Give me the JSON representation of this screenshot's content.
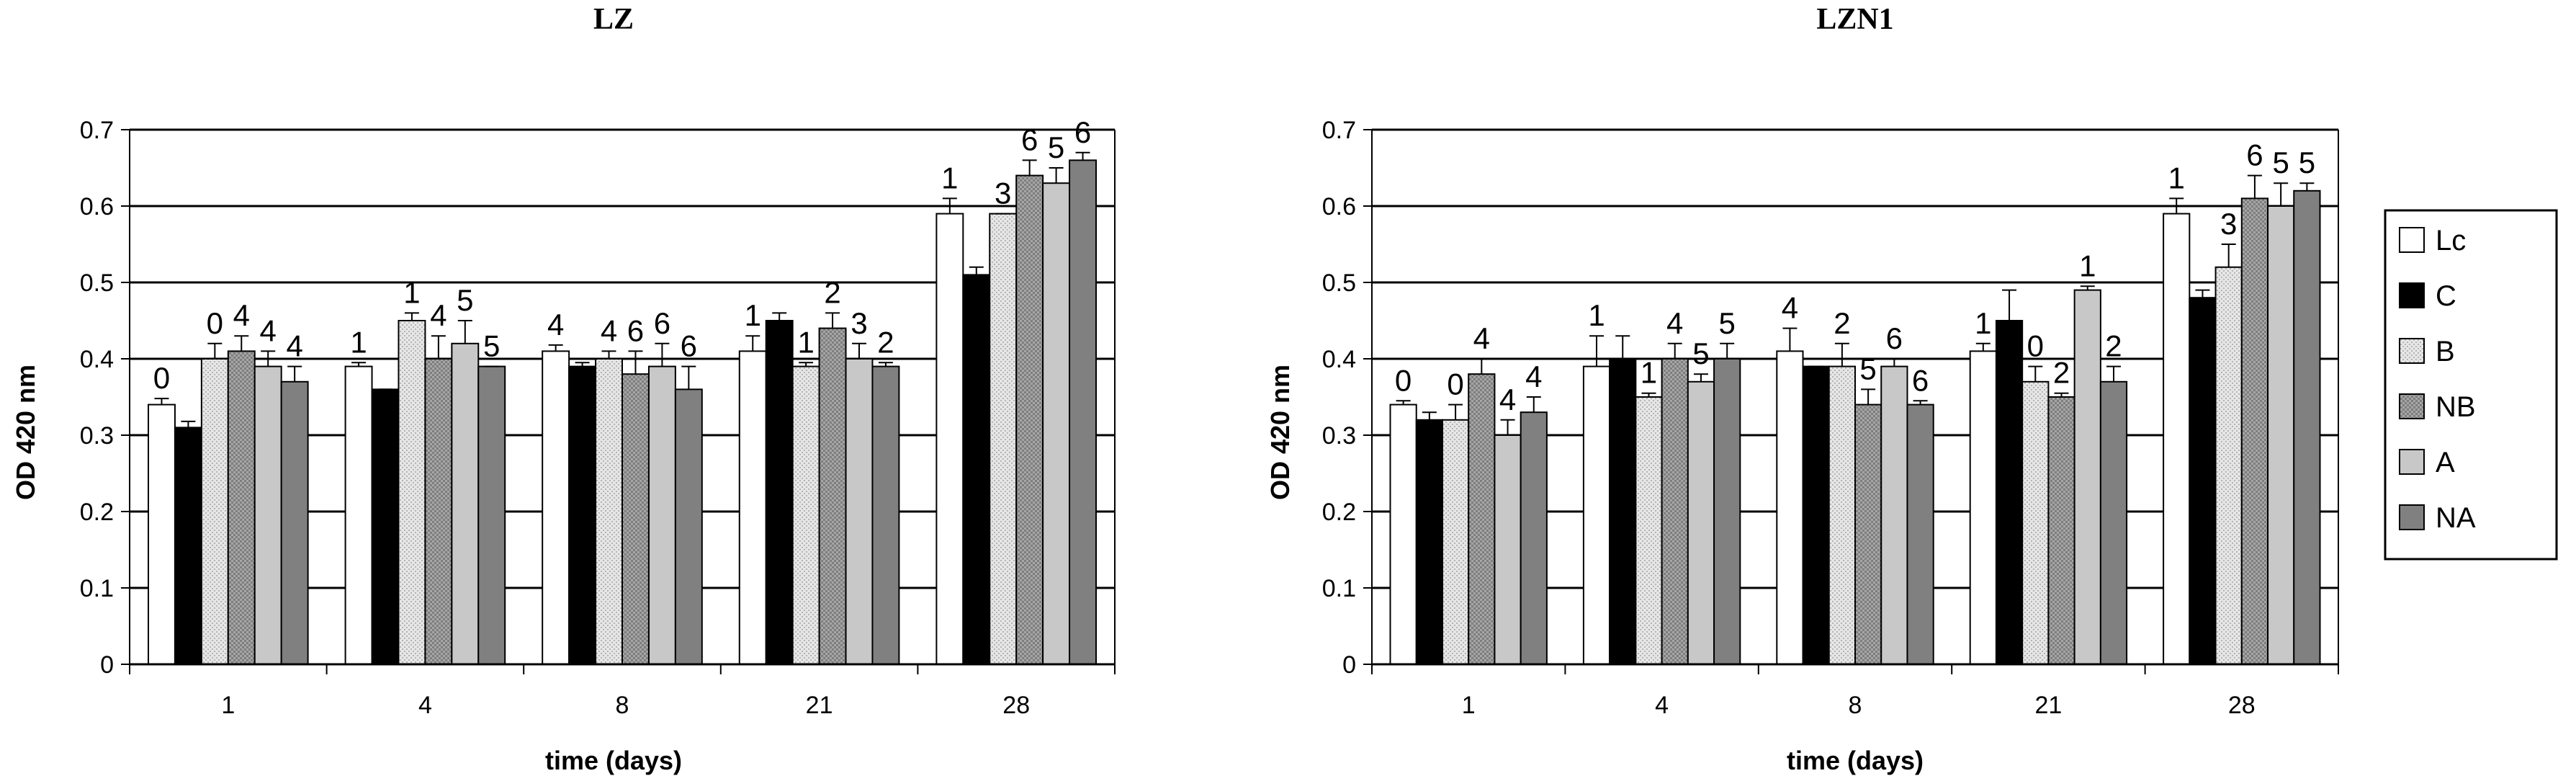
{
  "chart_data": [
    {
      "type": "bar",
      "title": "LZ",
      "xlabel": "time (days)",
      "ylabel": "OD 420 nm",
      "ylim": [
        0,
        0.7
      ],
      "ytick_step": 0.1,
      "grid": "horizontal",
      "categories": [
        "1",
        "4",
        "8",
        "21",
        "28"
      ],
      "series": [
        {
          "name": "Lc",
          "values": [
            0.34,
            0.39,
            0.41,
            0.41,
            0.59
          ],
          "errors": [
            0.008,
            0.005,
            0.008,
            0.02,
            0.02
          ],
          "labels": [
            "0",
            "1",
            "4",
            "1",
            "1"
          ]
        },
        {
          "name": "C",
          "values": [
            0.31,
            0.36,
            0.39,
            0.45,
            0.51
          ],
          "errors": [
            0.008,
            0.0,
            0.005,
            0.01,
            0.01
          ],
          "labels": [
            "",
            "",
            "",
            "",
            ""
          ]
        },
        {
          "name": "B",
          "values": [
            0.4,
            0.45,
            0.4,
            0.39,
            0.59
          ],
          "errors": [
            0.02,
            0.01,
            0.01,
            0.005,
            0.0
          ],
          "labels": [
            "0",
            "1",
            "4",
            "1",
            "3"
          ]
        },
        {
          "name": "NB",
          "values": [
            0.41,
            0.4,
            0.38,
            0.44,
            0.64
          ],
          "errors": [
            0.02,
            0.03,
            0.03,
            0.02,
            0.02
          ],
          "labels": [
            "4",
            "4",
            "6",
            "2",
            "6"
          ]
        },
        {
          "name": "A",
          "values": [
            0.39,
            0.42,
            0.39,
            0.4,
            0.63
          ],
          "errors": [
            0.02,
            0.03,
            0.03,
            0.02,
            0.02
          ],
          "labels": [
            "4",
            "5",
            "6",
            "3",
            "5"
          ]
        },
        {
          "name": "NA",
          "values": [
            0.37,
            0.39,
            0.36,
            0.39,
            0.66
          ],
          "errors": [
            0.02,
            0.0,
            0.03,
            0.005,
            0.01
          ],
          "labels": [
            "4",
            "5",
            "6",
            "2",
            "6"
          ]
        }
      ]
    },
    {
      "type": "bar",
      "title": "LZN1",
      "xlabel": "time (days)",
      "ylabel": "OD 420 nm",
      "ylim": [
        0,
        0.7
      ],
      "ytick_step": 0.1,
      "grid": "horizontal",
      "legend": "right",
      "categories": [
        "1",
        "4",
        "8",
        "21",
        "28"
      ],
      "series": [
        {
          "name": "Lc",
          "values": [
            0.34,
            0.39,
            0.41,
            0.41,
            0.59
          ],
          "errors": [
            0.005,
            0.04,
            0.03,
            0.01,
            0.02
          ],
          "labels": [
            "0",
            "1",
            "4",
            "1",
            "1"
          ]
        },
        {
          "name": "C",
          "values": [
            0.32,
            0.4,
            0.39,
            0.45,
            0.48
          ],
          "errors": [
            0.01,
            0.03,
            0.0,
            0.04,
            0.01
          ],
          "labels": [
            "",
            "",
            "",
            "",
            ""
          ]
        },
        {
          "name": "B",
          "values": [
            0.32,
            0.35,
            0.39,
            0.37,
            0.52
          ],
          "errors": [
            0.02,
            0.005,
            0.03,
            0.02,
            0.03
          ],
          "labels": [
            "0",
            "1",
            "2",
            "0",
            "3"
          ]
        },
        {
          "name": "NB",
          "values": [
            0.38,
            0.4,
            0.34,
            0.35,
            0.61
          ],
          "errors": [
            0.02,
            0.02,
            0.02,
            0.005,
            0.03
          ],
          "labels": [
            "4",
            "4",
            "5",
            "2",
            "6"
          ]
        },
        {
          "name": "A",
          "values": [
            0.3,
            0.37,
            0.39,
            0.49,
            0.6
          ],
          "errors": [
            0.02,
            0.01,
            0.01,
            0.005,
            0.03
          ],
          "labels": [
            "4",
            "5",
            "6",
            "1",
            "5"
          ]
        },
        {
          "name": "NA",
          "values": [
            0.33,
            0.4,
            0.34,
            0.37,
            0.62
          ],
          "errors": [
            0.02,
            0.02,
            0.005,
            0.02,
            0.01
          ],
          "labels": [
            "4",
            "5",
            "6",
            "2",
            "5"
          ]
        }
      ]
    }
  ],
  "legend": {
    "items": [
      {
        "name": "Lc",
        "fill": "#ffffff",
        "pattern": ""
      },
      {
        "name": "C",
        "fill": "#000000",
        "pattern": ""
      },
      {
        "name": "B",
        "fill": "#e4e4e4",
        "pattern": "dots"
      },
      {
        "name": "NB",
        "fill": "#8f8f8f",
        "pattern": "checker"
      },
      {
        "name": "A",
        "fill": "#c8c8c8",
        "pattern": ""
      },
      {
        "name": "NA",
        "fill": "#808080",
        "pattern": ""
      }
    ]
  }
}
